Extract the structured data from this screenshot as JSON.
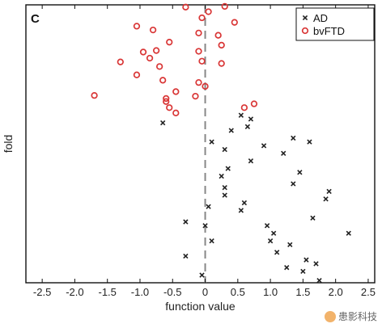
{
  "chart_data": {
    "type": "scatter",
    "panel_label": "C",
    "title": "",
    "xlabel": "function value",
    "ylabel": "fold",
    "xlim": [
      -2.75,
      2.6
    ],
    "ylim": [
      0,
      36.5
    ],
    "xticks": [
      -2.5,
      -2.0,
      -1.5,
      -1.0,
      -0.5,
      0,
      0.5,
      1.0,
      1.5,
      2.0,
      2.5
    ],
    "xtick_labels": [
      "-2.5",
      "-2.0",
      "-1.5",
      "-1.0",
      "-0.5",
      "0",
      "0.5",
      "1.0",
      "1.5",
      "2.0",
      "2.5"
    ],
    "yticks_visible": false,
    "reference_line": {
      "x": 0,
      "style": "dashed",
      "color": "#888888"
    },
    "legend_position": "top-right",
    "series": [
      {
        "name": "AD",
        "marker": "x",
        "color": "#222222",
        "points": [
          [
            -0.65,
            21
          ],
          [
            0.55,
            22
          ],
          [
            0.7,
            21.5
          ],
          [
            0.65,
            20.5
          ],
          [
            0.4,
            20
          ],
          [
            0.1,
            18.5
          ],
          [
            1.35,
            19
          ],
          [
            0.9,
            18
          ],
          [
            1.6,
            18.5
          ],
          [
            0.3,
            17.5
          ],
          [
            1.2,
            17
          ],
          [
            0.7,
            16
          ],
          [
            0.35,
            15
          ],
          [
            1.45,
            14.5
          ],
          [
            0.25,
            14
          ],
          [
            1.35,
            13
          ],
          [
            0.3,
            12.5
          ],
          [
            1.9,
            12
          ],
          [
            1.85,
            11
          ],
          [
            0.3,
            11.5
          ],
          [
            0.6,
            10.5
          ],
          [
            0.05,
            10
          ],
          [
            0.55,
            9.5
          ],
          [
            -0.3,
            8
          ],
          [
            1.65,
            8.5
          ],
          [
            0.0,
            7.5
          ],
          [
            0.95,
            7.5
          ],
          [
            1.05,
            6.5
          ],
          [
            2.2,
            6.5
          ],
          [
            1.0,
            5.5
          ],
          [
            0.1,
            5.5
          ],
          [
            1.3,
            5
          ],
          [
            -0.3,
            3.5
          ],
          [
            1.1,
            4
          ],
          [
            1.55,
            3
          ],
          [
            1.7,
            2.5
          ],
          [
            1.25,
            2
          ],
          [
            1.5,
            1.5
          ],
          [
            -0.05,
            1
          ],
          [
            1.75,
            0.3
          ]
        ]
      },
      {
        "name": "bvFTD",
        "marker": "o",
        "color": "#d93636",
        "points": [
          [
            -0.3,
            36.2
          ],
          [
            0.3,
            36.3
          ],
          [
            0.05,
            35.6
          ],
          [
            -0.05,
            34.8
          ],
          [
            -1.05,
            33.7
          ],
          [
            -0.8,
            33.2
          ],
          [
            -0.75,
            30.5
          ],
          [
            0.45,
            34.2
          ],
          [
            -0.1,
            32.8
          ],
          [
            0.2,
            32.5
          ],
          [
            0.25,
            31.2
          ],
          [
            -0.55,
            31.6
          ],
          [
            -0.85,
            29.5
          ],
          [
            -0.95,
            30.3
          ],
          [
            -0.1,
            30.4
          ],
          [
            -0.05,
            29.1
          ],
          [
            -1.3,
            29.0
          ],
          [
            -0.7,
            28.4
          ],
          [
            0.25,
            28.8
          ],
          [
            -1.05,
            27.3
          ],
          [
            -0.65,
            26.6
          ],
          [
            -0.1,
            26.3
          ],
          [
            0.0,
            25.8
          ],
          [
            -0.45,
            25.1
          ],
          [
            -0.15,
            24.5
          ],
          [
            -1.7,
            24.6
          ],
          [
            -0.6,
            24.2
          ],
          [
            -0.6,
            23.8
          ],
          [
            -0.55,
            23.0
          ],
          [
            -0.45,
            22.3
          ],
          [
            0.6,
            23.0
          ],
          [
            0.75,
            23.5
          ]
        ]
      }
    ]
  },
  "watermark": {
    "text": "患影科技"
  }
}
